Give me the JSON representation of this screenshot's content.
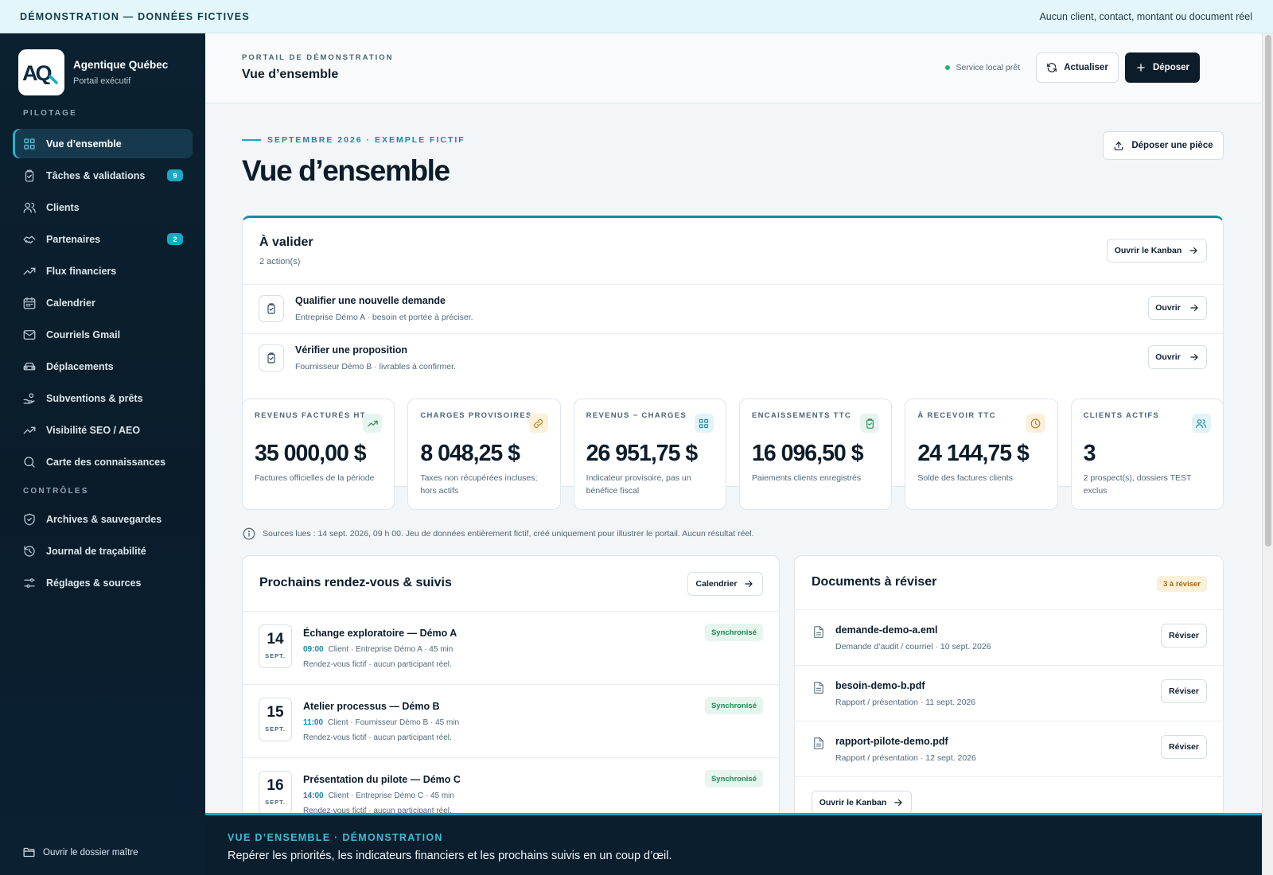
{
  "banner": {
    "left": "DÉMONSTRATION — DONNÉES FICTIVES",
    "right": "Aucun client, contact, montant ou document réel"
  },
  "brand": {
    "name": "Agentique Québec",
    "subtitle": "Portail exécutif",
    "logo_text": "AQ"
  },
  "sidebar": {
    "section_pilotage": "PILOTAGE",
    "section_controles": "CONTRÔLES",
    "items": [
      {
        "label": "Vue d’ensemble",
        "icon": "grid-icon",
        "active": true
      },
      {
        "label": "Tâches & validations",
        "icon": "clipboard-check-icon",
        "badge": "9"
      },
      {
        "label": "Clients",
        "icon": "users-icon"
      },
      {
        "label": "Partenaires",
        "icon": "handshake-icon",
        "badge": "2"
      },
      {
        "label": "Flux financiers",
        "icon": "trending-up-icon"
      },
      {
        "label": "Calendrier",
        "icon": "calendar-icon"
      },
      {
        "label": "Courriels Gmail",
        "icon": "mail-icon"
      },
      {
        "label": "Déplacements",
        "icon": "car-icon"
      },
      {
        "label": "Subventions & prêts",
        "icon": "hand-coins-icon"
      },
      {
        "label": "Visibilité SEO / AEO",
        "icon": "trending-up-icon"
      },
      {
        "label": "Carte des connaissances",
        "icon": "search-icon"
      }
    ],
    "controls": [
      {
        "label": "Archives & sauvegardes",
        "icon": "shield-check-icon"
      },
      {
        "label": "Journal de traçabilité",
        "icon": "history-icon"
      },
      {
        "label": "Réglages & sources",
        "icon": "sliders-icon"
      }
    ],
    "footer": "Ouvrir le dossier maître"
  },
  "header": {
    "kicker": "PORTAIL DE DÉMONSTRATION",
    "title": "Vue d’ensemble",
    "status": "Service local prêt",
    "refresh_label": "Actualiser",
    "deposit_label": "Déposer"
  },
  "page": {
    "eyebrow": "SEPTEMBRE 2026 · EXEMPLE FICTIF",
    "title": "Vue d’ensemble",
    "upload_label": "Déposer une pièce"
  },
  "validate": {
    "title": "À valider",
    "count": "2 action(s)",
    "kanban_label": "Ouvrir le Kanban",
    "tasks": [
      {
        "title": "Qualifier une nouvelle demande",
        "subtitle": "Entreprise Démo A · besoin et portée à préciser.",
        "action": "Ouvrir"
      },
      {
        "title": "Vérifier une proposition",
        "subtitle": "Fournisseur Démo B · livrables à confirmer.",
        "action": "Ouvrir"
      }
    ]
  },
  "kpis": [
    {
      "label": "REVENUS FACTURÉS HT",
      "value": "35 000,00 $",
      "desc": "Factures officielles de la période",
      "icon": "trending-up-icon",
      "color": "#1e8b55",
      "bg": "#e6f5ee"
    },
    {
      "label": "CHARGES PROVISOIRES",
      "value": "8 048,25 $",
      "desc": "Taxes non récupérées incluses; hors actifs",
      "icon": "link-icon",
      "color": "#b9781a",
      "bg": "#fbf0d9"
    },
    {
      "label": "REVENUS − CHARGES",
      "value": "26 951,75 $",
      "desc": "Indicateur provisoire, pas un bénéfice fiscal",
      "icon": "grid-icon",
      "color": "#138aa3",
      "bg": "#e2f3f7"
    },
    {
      "label": "ENCAISSEMENTS TTC",
      "value": "16 096,50 $",
      "desc": "Paiements clients enregistrés",
      "icon": "clipboard-check-icon",
      "color": "#1e8b55",
      "bg": "#e6f5ee"
    },
    {
      "label": "À RECEVOIR TTC",
      "value": "24 144,75 $",
      "desc": "Solde des factures clients",
      "icon": "clock-icon",
      "color": "#b9781a",
      "bg": "#fbf0d9"
    },
    {
      "label": "CLIENTS ACTIFS",
      "value": "3",
      "desc": "2 prospect(s), dossiers TEST exclus",
      "icon": "users-icon",
      "color": "#138aa3",
      "bg": "#e2f3f7"
    }
  ],
  "sources": "Sources lues : 14 sept. 2026, 09 h 00. Jeu de données entièrement fictif, créé uniquement pour illustrer le portail. Aucun résultat réel.",
  "appointments": {
    "title": "Prochains rendez-vous & suivis",
    "calendar_label": "Calendrier",
    "items": [
      {
        "day": "14",
        "month": "SEPT.",
        "title": "Échange exploratoire — Démo A",
        "time": "09:00",
        "meta": "Client · Entreprise Démo A · 45 min",
        "note": "Rendez-vous fictif · aucun participant réel.",
        "status": "Synchronisé"
      },
      {
        "day": "15",
        "month": "SEPT.",
        "title": "Atelier processus — Démo B",
        "time": "11:00",
        "meta": "Client · Fournisseur Démo B · 45 min",
        "note": "Rendez-vous fictif · aucun participant réel.",
        "status": "Synchronisé"
      },
      {
        "day": "16",
        "month": "SEPT.",
        "title": "Présentation du pilote — Démo C",
        "time": "14:00",
        "meta": "Client · Entreprise Démo C · 45 min",
        "note": "Rendez-vous fictif · aucun participant réel.",
        "status": "Synchronisé"
      }
    ]
  },
  "documents": {
    "title": "Documents à réviser",
    "badge": "3 à réviser",
    "review_label": "Réviser",
    "kanban_label": "Ouvrir le Kanban",
    "items": [
      {
        "name": "demande-demo-a.eml",
        "meta": "Demande d’audit / courriel · 10 sept. 2026"
      },
      {
        "name": "besoin-demo-b.pdf",
        "meta": "Rapport / présentation · 11 sept. 2026"
      },
      {
        "name": "rapport-pilote-demo.pdf",
        "meta": "Rapport / présentation · 12 sept. 2026"
      }
    ]
  },
  "caption": {
    "kicker": "VUE D’ENSEMBLE · DÉMONSTRATION",
    "text": "Repérer les priorités, les indicateurs financiers et les prochains suivis en un coup d’œil."
  },
  "colors": {
    "accent": "#17a9c7",
    "sidebar": "#0b2130",
    "dark_button": "#0c1c2a",
    "success": "#1e8b55",
    "warning": "#a86a12"
  }
}
